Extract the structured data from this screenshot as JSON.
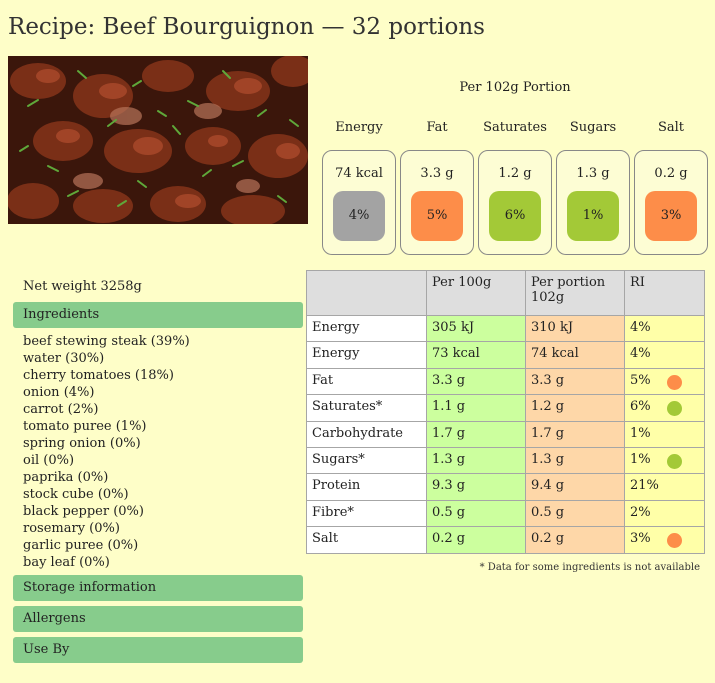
{
  "title": "Recipe: Beef Bourguignon — 32 portions",
  "portion_heading": "Per 102g Portion",
  "traffic_lights": [
    {
      "label": "Energy",
      "amount": "74 kcal",
      "pct": "4%",
      "color": "#a3a3a3"
    },
    {
      "label": "Fat",
      "amount": "3.3 g",
      "pct": "5%",
      "color": "#fd8d49"
    },
    {
      "label": "Saturates",
      "amount": "1.2 g",
      "pct": "6%",
      "color": "#a3c937"
    },
    {
      "label": "Sugars",
      "amount": "1.3 g",
      "pct": "1%",
      "color": "#a3c937"
    },
    {
      "label": "Salt",
      "amount": "0.2 g",
      "pct": "3%",
      "color": "#fd8d49"
    }
  ],
  "net_weight": "Net weight 3258g",
  "sections": {
    "ingredients": "Ingredients",
    "storage": "Storage information",
    "allergens": "Allergens",
    "use_by": "Use By"
  },
  "ingredients": [
    "beef stewing steak (39%)",
    "water (30%)",
    "cherry tomatoes (18%)",
    "onion (4%)",
    "carrot (2%)",
    "tomato puree (1%)",
    "spring onion (0%)",
    "oil (0%)",
    "paprika (0%)",
    "stock cube (0%)",
    "black pepper (0%)",
    "rosemary (0%)",
    "garlic puree (0%)",
    "bay leaf (0%)"
  ],
  "table": {
    "headers": [
      "",
      "Per 100g",
      "Per portion 102g",
      "RI"
    ],
    "rows": [
      {
        "name": "Energy",
        "per100": "305 kJ",
        "perPortion": "310 kJ",
        "ri": "4%",
        "dot": ""
      },
      {
        "name": "Energy",
        "per100": "73 kcal",
        "perPortion": "74 kcal",
        "ri": "4%",
        "dot": ""
      },
      {
        "name": "Fat",
        "per100": "3.3 g",
        "perPortion": "3.3 g",
        "ri": "5%",
        "dot": "#fd8d49"
      },
      {
        "name": "Saturates*",
        "per100": "1.1 g",
        "perPortion": "1.2 g",
        "ri": "6%",
        "dot": "#a3c937"
      },
      {
        "name": "Carbohydrate",
        "per100": "1.7 g",
        "perPortion": "1.7 g",
        "ri": "1%",
        "dot": ""
      },
      {
        "name": "Sugars*",
        "per100": "1.3 g",
        "perPortion": "1.3 g",
        "ri": "1%",
        "dot": "#a3c937"
      },
      {
        "name": "Protein",
        "per100": "9.3 g",
        "perPortion": "9.4 g",
        "ri": "21%",
        "dot": ""
      },
      {
        "name": "Fibre*",
        "per100": "0.5 g",
        "perPortion": "0.5 g",
        "ri": "2%",
        "dot": ""
      },
      {
        "name": "Salt",
        "per100": "0.2 g",
        "perPortion": "0.2 g",
        "ri": "3%",
        "dot": "#fd8d49"
      }
    ]
  },
  "footnote": "* Data for some ingredients is not available"
}
